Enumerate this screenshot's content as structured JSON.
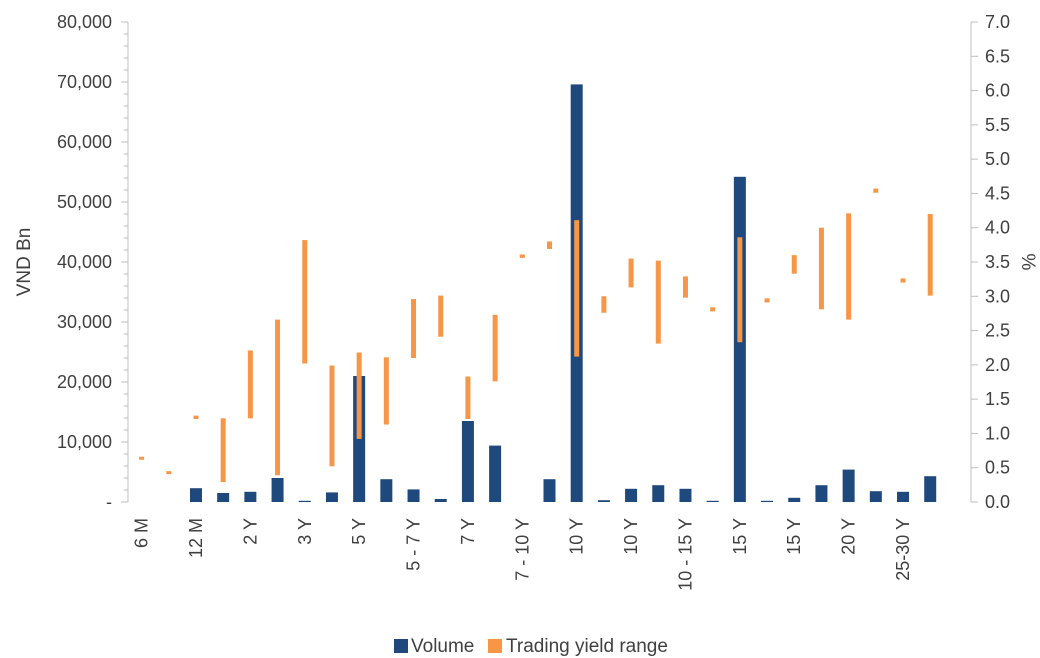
{
  "chart_data": {
    "type": "bar",
    "ylabel_left": "VND Bn",
    "ylabel_right": "%",
    "y_left_ticks": [
      "-",
      "10,000",
      "20,000",
      "30,000",
      "40,000",
      "50,000",
      "60,000",
      "70,000",
      "80,000"
    ],
    "y_left_range": [
      0,
      80000
    ],
    "y_right_ticks": [
      "0.0",
      "0.5",
      "1.0",
      "1.5",
      "2.0",
      "2.5",
      "3.0",
      "3.5",
      "4.0",
      "4.5",
      "5.0",
      "5.5",
      "6.0",
      "6.5",
      "7.0"
    ],
    "y_right_range": [
      0,
      7
    ],
    "category_count": 31,
    "x_tick_labels": [
      {
        "index": 0,
        "label": "6 M"
      },
      {
        "index": 2,
        "label": "12 M"
      },
      {
        "index": 4,
        "label": "2 Y"
      },
      {
        "index": 6,
        "label": "3 Y"
      },
      {
        "index": 8,
        "label": "5 Y"
      },
      {
        "index": 10,
        "label": "5 - 7 Y"
      },
      {
        "index": 12,
        "label": "7 Y"
      },
      {
        "index": 14,
        "label": "7 - 10 Y"
      },
      {
        "index": 16,
        "label": "10 Y"
      },
      {
        "index": 18,
        "label": "10 Y"
      },
      {
        "index": 20,
        "label": "10 - 15 Y"
      },
      {
        "index": 22,
        "label": "15 Y"
      },
      {
        "index": 24,
        "label": "15 Y"
      },
      {
        "index": 26,
        "label": "20 Y"
      },
      {
        "index": 28,
        "label": "25-30 Y"
      }
    ],
    "series": [
      {
        "name": "Volume",
        "color": "#1f497d",
        "axis": "left",
        "values": [
          0,
          0,
          2300,
          1500,
          1700,
          4000,
          200,
          1600,
          21000,
          3800,
          2100,
          500,
          13500,
          9400,
          0,
          3800,
          69600,
          300,
          2200,
          2800,
          2200,
          200,
          54200,
          200,
          700,
          2800,
          5400,
          1800,
          1700,
          4300,
          0
        ]
      },
      {
        "name": "Trading yield range",
        "color": "#f79646",
        "axis": "right",
        "ranges": [
          [
            0.62,
            0.66
          ],
          [
            0.41,
            0.45
          ],
          [
            1.21,
            1.26
          ],
          [
            0.29,
            1.22
          ],
          [
            1.22,
            2.21
          ],
          [
            0.39,
            2.66
          ],
          [
            2.02,
            3.82
          ],
          [
            0.52,
            1.99
          ],
          [
            0.92,
            2.18
          ],
          [
            1.13,
            2.11
          ],
          [
            2.1,
            2.96
          ],
          [
            2.41,
            3.01
          ],
          [
            1.21,
            1.83
          ],
          [
            1.76,
            2.73
          ],
          [
            3.56,
            3.61
          ],
          [
            3.69,
            3.8
          ],
          [
            2.12,
            4.11
          ],
          [
            2.76,
            3.0
          ],
          [
            3.13,
            3.55
          ],
          [
            2.31,
            3.52
          ],
          [
            2.98,
            3.29
          ],
          [
            2.78,
            2.84
          ],
          [
            2.33,
            3.86
          ],
          [
            2.91,
            2.97
          ],
          [
            3.33,
            3.6
          ],
          [
            2.81,
            4.0
          ],
          [
            2.66,
            4.21
          ],
          [
            4.51,
            4.57
          ],
          [
            3.2,
            3.26
          ],
          [
            3.01,
            4.2
          ],
          null
        ]
      }
    ],
    "legend_position": "bottom",
    "grid": false
  }
}
